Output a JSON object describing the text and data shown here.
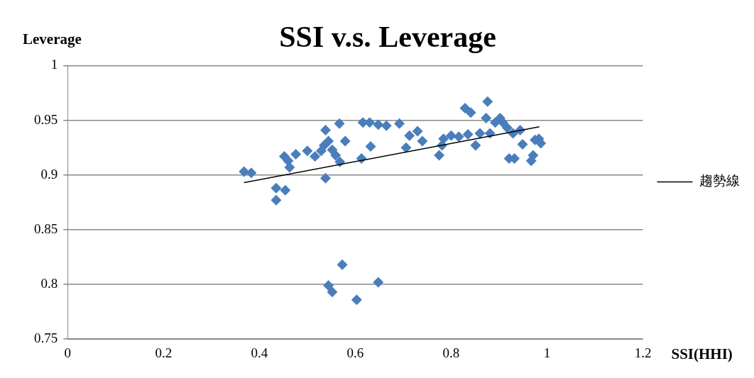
{
  "chart_data": {
    "type": "scatter",
    "title": "SSI v.s. Leverage",
    "xlabel": "SSI(HHI)",
    "ylabel": "Leverage",
    "xlim": [
      0,
      1.2
    ],
    "xticks": [
      0,
      0.2,
      0.4,
      0.6,
      0.8,
      1,
      1.2
    ],
    "ylim": [
      0.75,
      1
    ],
    "yticks": [
      0.75,
      0.8,
      0.85,
      0.9,
      0.95,
      1
    ],
    "grid": "y",
    "legend": "right",
    "marker": "diamond",
    "series": [
      {
        "color": "#4a7ebb",
        "x": [
          0.368,
          0.383,
          0.435,
          0.435,
          0.454,
          0.452,
          0.46,
          0.463,
          0.476,
          0.5,
          0.516,
          0.529,
          0.535,
          0.538,
          0.538,
          0.544,
          0.552,
          0.559,
          0.567,
          0.568,
          0.579,
          0.613,
          0.616,
          0.63,
          0.632,
          0.648,
          0.665,
          0.692,
          0.706,
          0.713,
          0.73,
          0.74,
          0.775,
          0.781,
          0.784,
          0.8,
          0.816,
          0.829,
          0.841,
          0.835,
          0.851,
          0.86,
          0.873,
          0.876,
          0.881,
          0.892,
          0.902,
          0.908,
          0.917,
          0.921,
          0.929,
          0.932,
          0.944,
          0.949,
          0.967,
          0.971,
          0.975,
          0.983,
          0.987,
          0.544,
          0.552,
          0.573,
          0.603,
          0.648
        ],
        "values": [
          0.903,
          0.902,
          0.888,
          0.877,
          0.886,
          0.917,
          0.913,
          0.907,
          0.919,
          0.922,
          0.917,
          0.922,
          0.927,
          0.941,
          0.897,
          0.931,
          0.923,
          0.918,
          0.947,
          0.912,
          0.931,
          0.915,
          0.948,
          0.948,
          0.926,
          0.946,
          0.945,
          0.947,
          0.925,
          0.936,
          0.94,
          0.931,
          0.918,
          0.927,
          0.933,
          0.936,
          0.935,
          0.961,
          0.957,
          0.937,
          0.927,
          0.938,
          0.952,
          0.967,
          0.938,
          0.948,
          0.952,
          0.948,
          0.943,
          0.915,
          0.938,
          0.915,
          0.941,
          0.928,
          0.913,
          0.918,
          0.932,
          0.933,
          0.929,
          0.799,
          0.793,
          0.818,
          0.786,
          0.802
        ]
      },
      {
        "type": "line",
        "name": "趨勢線",
        "color": "#000000",
        "marker": "none",
        "x": [
          0.368,
          0.984
        ],
        "values": [
          0.893,
          0.944
        ]
      }
    ]
  }
}
